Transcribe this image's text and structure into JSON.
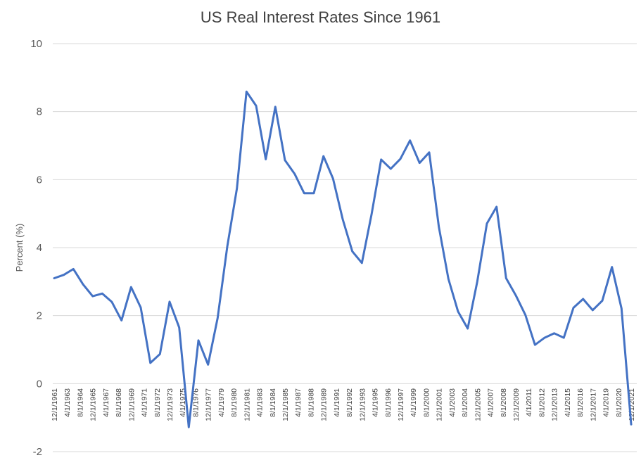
{
  "chart_data": {
    "type": "line",
    "title": "US Real Interest Rates Since 1961",
    "xlabel": "",
    "ylabel": "Percent (%)",
    "ylim": [
      -2,
      10
    ],
    "yticks": [
      -2,
      0,
      2,
      4,
      6,
      8,
      10
    ],
    "grid": true,
    "legend": "none",
    "line_color": "#4472C4",
    "tick_labels": [
      "12/1/1961",
      "4/1/1963",
      "8/1/1964",
      "12/1/1965",
      "4/1/1967",
      "8/1/1968",
      "12/1/1969",
      "4/1/1971",
      "8/1/1972",
      "12/1/1973",
      "4/1/1975",
      "8/1/1976",
      "12/1/1977",
      "4/1/1979",
      "8/1/1980",
      "12/1/1981",
      "4/1/1983",
      "8/1/1984",
      "12/1/1985",
      "4/1/1987",
      "8/1/1988",
      "12/1/1989",
      "4/1/1991",
      "8/1/1992",
      "12/1/1993",
      "4/1/1995",
      "8/1/1996",
      "12/1/1997",
      "4/1/1999",
      "8/1/2000",
      "12/1/2001",
      "4/1/2003",
      "8/1/2004",
      "12/1/2005",
      "4/1/2007",
      "8/1/2008",
      "12/1/2009",
      "4/1/2011",
      "8/1/2012",
      "12/1/2013",
      "4/1/2015",
      "8/1/2016",
      "12/1/2017",
      "4/1/2019",
      "8/1/2020",
      "12/1/2021"
    ],
    "values": [
      3.1,
      3.2,
      3.37,
      2.92,
      2.57,
      2.65,
      2.4,
      1.86,
      2.84,
      2.24,
      0.61,
      0.87,
      2.41,
      1.65,
      -1.28,
      1.27,
      0.56,
      1.93,
      4.03,
      5.74,
      8.59,
      8.17,
      6.6,
      8.14,
      6.57,
      6.17,
      5.6,
      5.6,
      6.69,
      6.03,
      4.84,
      3.89,
      3.55,
      4.97,
      6.59,
      6.32,
      6.61,
      7.15,
      6.49,
      6.8,
      4.61,
      3.08,
      2.12,
      1.62,
      3.0,
      4.71,
      5.2,
      3.1,
      2.6,
      2.02,
      1.14,
      1.35,
      1.48,
      1.35,
      2.23,
      2.49,
      2.16,
      2.44,
      3.43,
      2.21,
      -1.2
    ]
  }
}
